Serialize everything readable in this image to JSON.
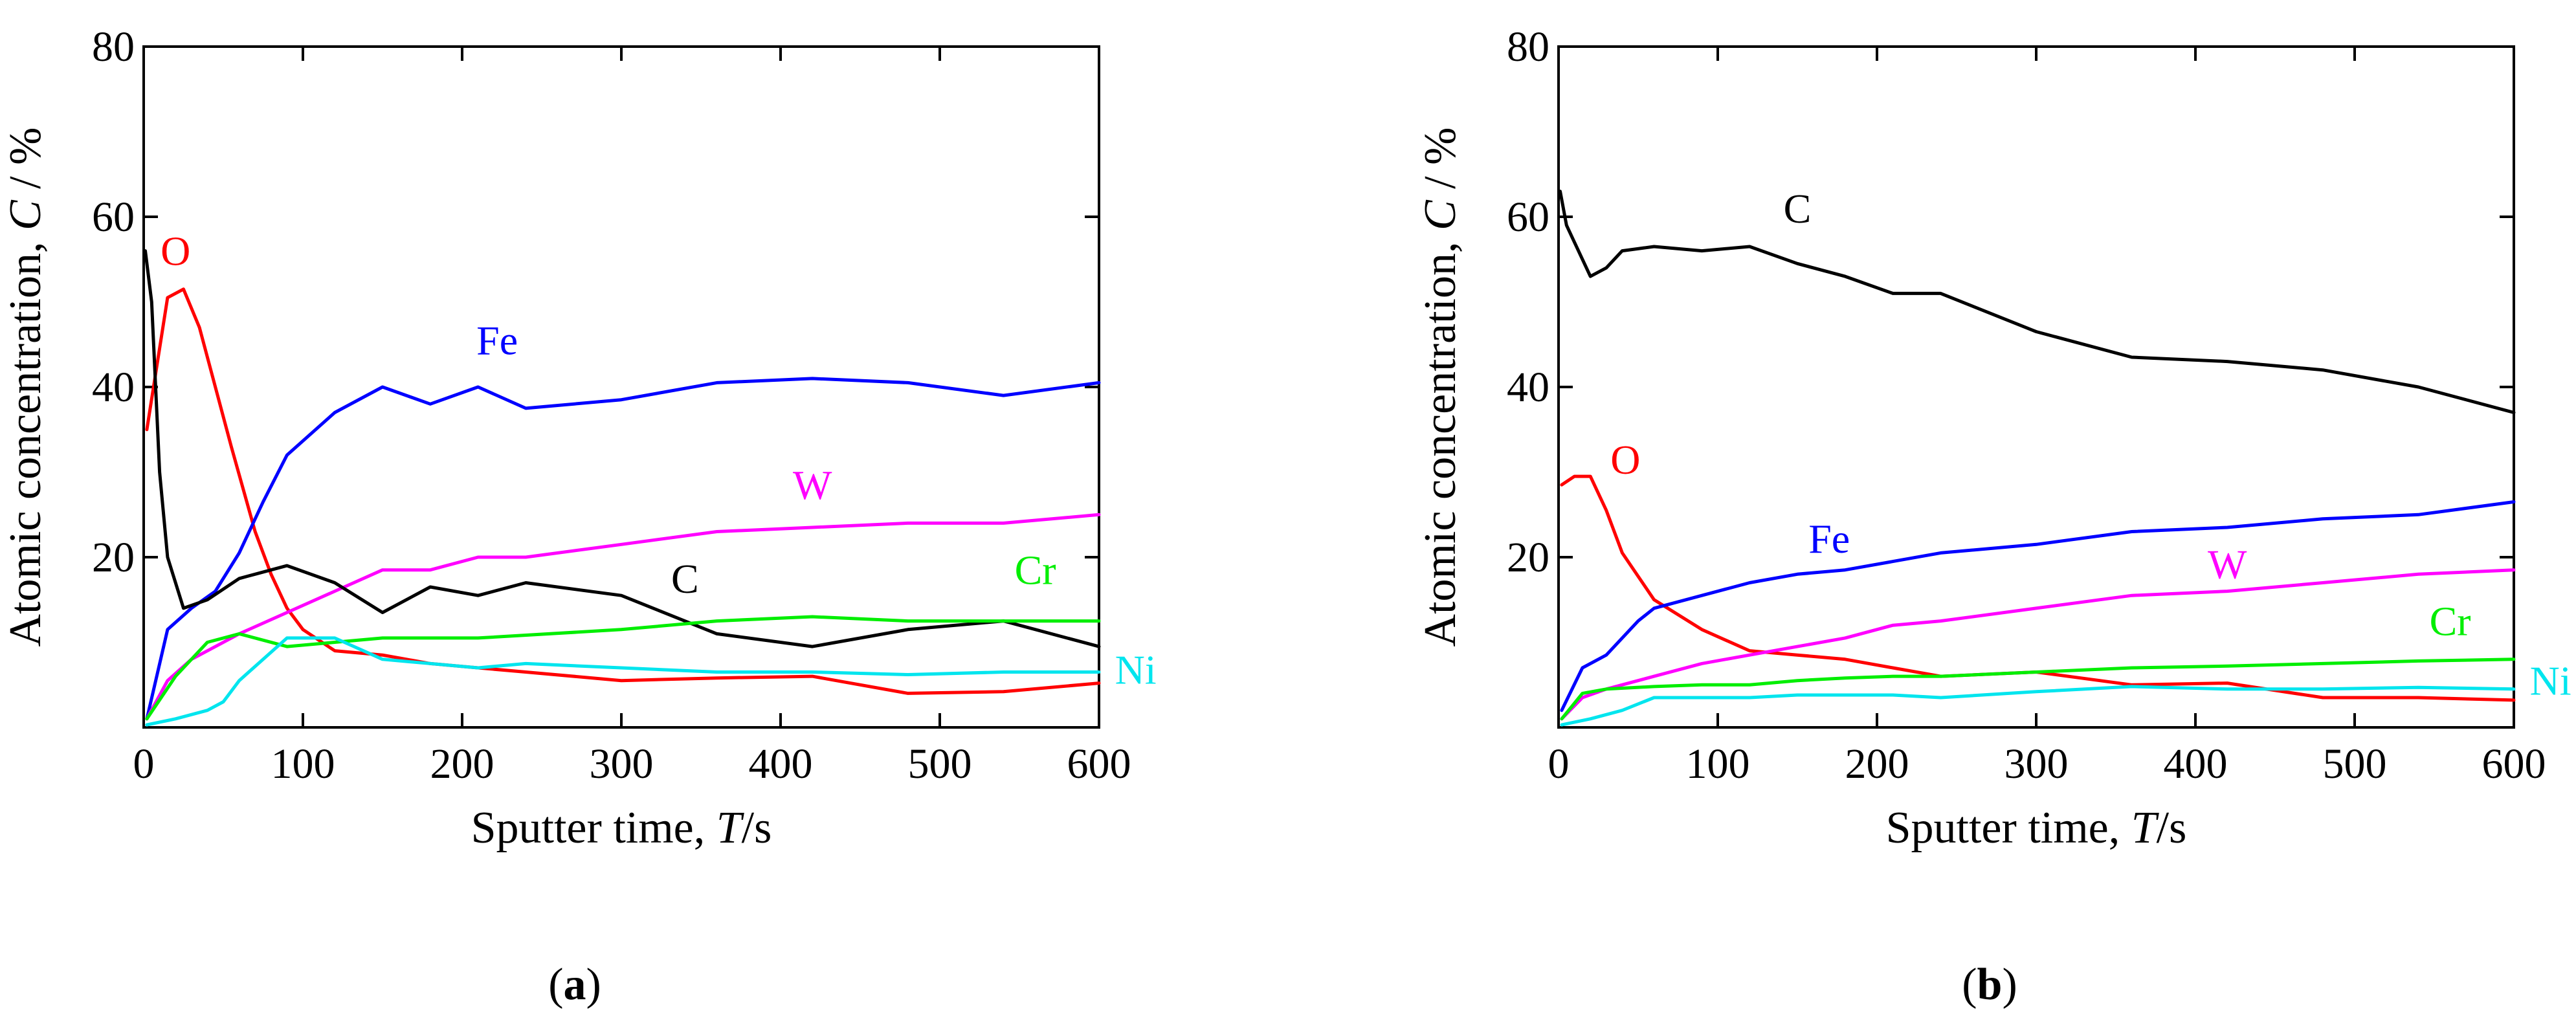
{
  "chart_data": [
    {
      "type": "line",
      "panel": "a",
      "caption_open": "(",
      "caption_letter": "a",
      "caption_close": ")",
      "title": "",
      "xlabel_main": "Sputter time, ",
      "xlabel_var": "T",
      "xlabel_unit": "/s",
      "ylabel_main": "Atomic concentration, ",
      "ylabel_var": "C",
      "ylabel_unit": " / %",
      "xlim": [
        0,
        600
      ],
      "ylim": [
        0,
        80
      ],
      "x_ticks": [
        0,
        100,
        200,
        300,
        400,
        500,
        600
      ],
      "y_ticks": [
        20,
        40,
        60,
        80
      ],
      "y_tick_zero_labeled": false,
      "series": [
        {
          "name": "O",
          "color": "#ff0000",
          "label_x": 20,
          "label_y": 56,
          "x": [
            2,
            15,
            25,
            35,
            45,
            55,
            70,
            80,
            90,
            100,
            120,
            150,
            180,
            210,
            240,
            300,
            360,
            420,
            480,
            540,
            600
          ],
          "y": [
            35,
            50.5,
            51.5,
            47,
            40,
            33,
            23,
            18,
            14,
            11.5,
            9,
            8.5,
            7.5,
            7,
            6.5,
            5.5,
            5.8,
            6,
            4,
            4.2,
            5.2
          ]
        },
        {
          "name": "Fe",
          "color": "#0000ff",
          "label_x": 222,
          "label_y": 45.5,
          "x": [
            2,
            15,
            30,
            45,
            60,
            75,
            90,
            120,
            150,
            180,
            210,
            240,
            300,
            360,
            420,
            480,
            540,
            600
          ],
          "y": [
            1,
            11.5,
            14,
            16,
            20.5,
            26.5,
            32,
            37,
            40,
            38,
            40,
            37.5,
            38.5,
            40.5,
            41,
            40.5,
            39,
            40.5
          ]
        },
        {
          "name": "W",
          "color": "#ff00ff",
          "label_x": 420,
          "label_y": 28.5,
          "x": [
            2,
            15,
            30,
            60,
            90,
            120,
            150,
            180,
            210,
            240,
            300,
            360,
            420,
            480,
            540,
            600
          ],
          "y": [
            1,
            5.5,
            8,
            11,
            13.5,
            16,
            18.5,
            18.5,
            20,
            20,
            21.5,
            23,
            23.5,
            24,
            24,
            25
          ]
        },
        {
          "name": "C",
          "color": "#000000",
          "label_x": 340,
          "label_y": 17.5,
          "x": [
            1,
            5,
            10,
            15,
            25,
            40,
            60,
            90,
            120,
            150,
            180,
            210,
            240,
            300,
            360,
            420,
            480,
            540,
            600
          ],
          "y": [
            56,
            50,
            30,
            20,
            14,
            15,
            17.5,
            19,
            17,
            13.5,
            16.5,
            15.5,
            17,
            15.5,
            11,
            9.5,
            11.5,
            12.5,
            9.5
          ]
        },
        {
          "name": "Cr",
          "color": "#00ee00",
          "label_x": 560,
          "label_y": 18.5,
          "x": [
            2,
            20,
            40,
            60,
            90,
            120,
            150,
            210,
            300,
            360,
            420,
            480,
            540,
            600
          ],
          "y": [
            1,
            6,
            10,
            11,
            9.5,
            10,
            10.5,
            10.5,
            11.5,
            12.5,
            13,
            12.5,
            12.5,
            12.5
          ]
        },
        {
          "name": "Ni",
          "color": "#00e5ee",
          "label_x": 610,
          "label_y": 6.8,
          "x": [
            2,
            20,
            40,
            50,
            60,
            90,
            120,
            150,
            180,
            210,
            240,
            300,
            360,
            420,
            480,
            540,
            600
          ],
          "y": [
            0.3,
            1,
            2,
            3,
            5.5,
            10.5,
            10.5,
            8,
            7.5,
            7,
            7.5,
            7,
            6.5,
            6.5,
            6.2,
            6.5,
            6.5
          ]
        }
      ]
    },
    {
      "type": "line",
      "panel": "b",
      "caption_open": "(",
      "caption_letter": "b",
      "caption_close": ")",
      "title": "",
      "xlabel_main": "Sputter time, ",
      "xlabel_var": "T",
      "xlabel_unit": "/s",
      "ylabel_main": "Atomic concentration, ",
      "ylabel_var": "C",
      "ylabel_unit": " / %",
      "xlim": [
        0,
        600
      ],
      "ylim": [
        0,
        80
      ],
      "x_ticks": [
        0,
        100,
        200,
        300,
        400,
        500,
        600
      ],
      "y_ticks": [
        20,
        40,
        60,
        80
      ],
      "y_tick_zero_labeled": false,
      "series": [
        {
          "name": "C",
          "color": "#000000",
          "label_x": 150,
          "label_y": 61,
          "x": [
            1,
            5,
            10,
            20,
            30,
            40,
            60,
            90,
            120,
            150,
            180,
            210,
            240,
            300,
            360,
            420,
            480,
            540,
            600
          ],
          "y": [
            63,
            59,
            57,
            53,
            54,
            56,
            56.5,
            56,
            56.5,
            54.5,
            53,
            51,
            51,
            46.5,
            43.5,
            43,
            42,
            40,
            37
          ]
        },
        {
          "name": "O",
          "color": "#ff0000",
          "label_x": 42,
          "label_y": 31.5,
          "x": [
            2,
            10,
            20,
            30,
            40,
            60,
            90,
            120,
            150,
            180,
            210,
            240,
            300,
            360,
            420,
            480,
            540,
            600
          ],
          "y": [
            28.5,
            29.5,
            29.5,
            25.5,
            20.5,
            15,
            11.5,
            9,
            8.5,
            8,
            7,
            6,
            6.5,
            5,
            5.2,
            3.5,
            3.5,
            3.2
          ]
        },
        {
          "name": "Fe",
          "color": "#0000ff",
          "label_x": 170,
          "label_y": 22.2,
          "x": [
            2,
            15,
            30,
            50,
            60,
            90,
            120,
            150,
            180,
            210,
            240,
            300,
            360,
            420,
            480,
            540,
            600
          ],
          "y": [
            2,
            7,
            8.5,
            12.5,
            14,
            15.5,
            17,
            18,
            18.5,
            19.5,
            20.5,
            21.5,
            23,
            23.5,
            24.5,
            25,
            26.5
          ]
        },
        {
          "name": "W",
          "color": "#ff00ff",
          "label_x": 420,
          "label_y": 19.2,
          "x": [
            2,
            15,
            30,
            60,
            90,
            120,
            150,
            180,
            210,
            240,
            300,
            360,
            420,
            480,
            540,
            600
          ],
          "y": [
            1,
            3.5,
            4.5,
            6,
            7.5,
            8.5,
            9.5,
            10.5,
            12,
            12.5,
            14,
            15.5,
            16,
            17,
            18,
            18.5
          ]
        },
        {
          "name": "Cr",
          "color": "#00ee00",
          "label_x": 560,
          "label_y": 12.5,
          "x": [
            2,
            15,
            30,
            60,
            90,
            120,
            150,
            180,
            210,
            240,
            300,
            360,
            420,
            480,
            540,
            600
          ],
          "y": [
            1,
            4,
            4.5,
            4.8,
            5,
            5,
            5.5,
            5.8,
            6,
            6,
            6.5,
            7,
            7.2,
            7.5,
            7.8,
            8
          ]
        },
        {
          "name": "Ni",
          "color": "#00e5ee",
          "label_x": 610,
          "label_y": 5.5,
          "x": [
            2,
            20,
            40,
            60,
            90,
            120,
            150,
            180,
            210,
            240,
            300,
            360,
            420,
            480,
            540,
            600
          ],
          "y": [
            0.3,
            1,
            2,
            3.5,
            3.5,
            3.5,
            3.8,
            3.8,
            3.8,
            3.5,
            4.2,
            4.8,
            4.5,
            4.5,
            4.7,
            4.5
          ]
        }
      ]
    }
  ]
}
